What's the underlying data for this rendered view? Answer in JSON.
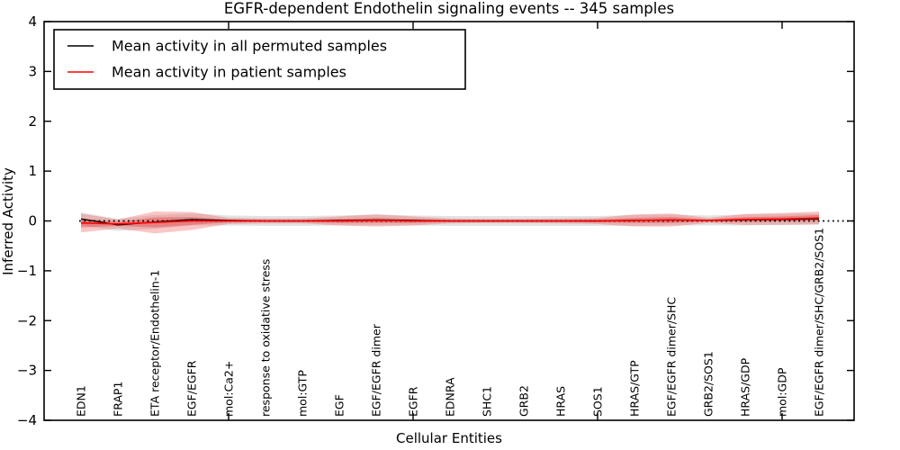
{
  "title": "EGFR-dependent Endothelin signaling events -- 345 samples",
  "axes": {
    "xlabel": "Cellular Entities",
    "ylabel": "Inferred Activity",
    "ytick_labels": [
      "4",
      "3",
      "2",
      "1",
      "0",
      "−1",
      "−2",
      "−3",
      "−4"
    ],
    "ytick_values": [
      4,
      3,
      2,
      1,
      0,
      -1,
      -2,
      -3,
      -4
    ]
  },
  "legend": {
    "items": [
      {
        "label": "Mean activity in all permuted samples",
        "color": "#000000"
      },
      {
        "label": "Mean activity in patient samples",
        "color": "#ff0000"
      }
    ]
  },
  "colors": {
    "permuted_line": "#000000",
    "patient_line": "#ff0000",
    "permuted_band": "rgba(128,128,128,0.22)",
    "patient_band_outer": "rgba(240,50,50,0.28)",
    "patient_band_inner": "rgba(230,30,30,0.33)",
    "frame": "#000000"
  },
  "chart_data": {
    "type": "line",
    "title": "EGFR-dependent Endothelin signaling events -- 345 samples",
    "xlabel": "Cellular Entities",
    "ylabel": "Inferred Activity",
    "ylim": [
      -4,
      4
    ],
    "grid": false,
    "legend_position": "upper left",
    "zero_reference_line": 0,
    "categories": [
      "EDN1",
      "FRAP1",
      "ETA receptor/Endothelin-1",
      "EGF/EGFR",
      "mol:Ca2+",
      "response to oxidative stress",
      "mol:GTP",
      "EGF",
      "EGF/EGFR dimer",
      "EGFR",
      "EDNRA",
      "SHC1",
      "GRB2",
      "HRAS",
      "SOS1",
      "HRAS/GTP",
      "EGF/EGFR dimer/SHC",
      "GRB2/SOS1",
      "HRAS/GDP",
      "mol:GDP",
      "EGF/EGFR dimer/SHC/GRB2/SOS1"
    ],
    "series": [
      {
        "name": "Mean activity in all permuted samples",
        "values": [
          0.04,
          -0.08,
          -0.02,
          0.03,
          0.01,
          0.0,
          0.0,
          0.01,
          0.02,
          0.01,
          0.0,
          0.0,
          0.0,
          0.0,
          0.0,
          0.01,
          0.02,
          0.01,
          0.02,
          0.03,
          0.04
        ]
      },
      {
        "name": "Mean activity in patient samples",
        "values": [
          -0.04,
          -0.06,
          -0.03,
          0.0,
          0.0,
          0.0,
          0.0,
          0.0,
          0.01,
          0.0,
          0.0,
          0.0,
          0.0,
          0.0,
          0.0,
          0.01,
          0.02,
          0.01,
          0.03,
          0.04,
          0.06
        ]
      }
    ],
    "bands": [
      {
        "name": "permuted-std-band",
        "center_series": 0,
        "half_widths": [
          0.13,
          0.12,
          0.14,
          0.12,
          0.1,
          0.1,
          0.1,
          0.1,
          0.11,
          0.1,
          0.1,
          0.1,
          0.1,
          0.1,
          0.1,
          0.11,
          0.11,
          0.1,
          0.11,
          0.11,
          0.11
        ]
      },
      {
        "name": "patient-std-band-outer",
        "center_series": 1,
        "half_widths": [
          0.19,
          0.09,
          0.22,
          0.18,
          0.06,
          0.05,
          0.05,
          0.09,
          0.12,
          0.09,
          0.05,
          0.04,
          0.04,
          0.05,
          0.06,
          0.12,
          0.13,
          0.05,
          0.11,
          0.12,
          0.13
        ]
      },
      {
        "name": "patient-std-band-inner",
        "center_series": 1,
        "half_widths": [
          0.09,
          0.04,
          0.1,
          0.08,
          0.03,
          0.02,
          0.02,
          0.04,
          0.05,
          0.04,
          0.02,
          0.02,
          0.02,
          0.02,
          0.03,
          0.05,
          0.06,
          0.02,
          0.05,
          0.05,
          0.06
        ]
      }
    ],
    "x_major_tick_indices": [
      4,
      9,
      14,
      19
    ]
  }
}
